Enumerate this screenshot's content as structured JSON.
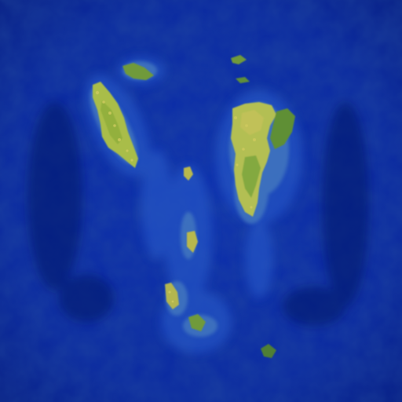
{
  "map": {
    "kind": "procedural-planet-texture",
    "colors": {
      "ocean_deep": "#061c78",
      "ocean": "#0a2aa6",
      "ocean_shallow": "#1d4cc4",
      "coast": "#5e8fb0",
      "land_light": "#b8c24a",
      "land": "#8fae3c",
      "land_dark": "#5a8a34"
    }
  }
}
